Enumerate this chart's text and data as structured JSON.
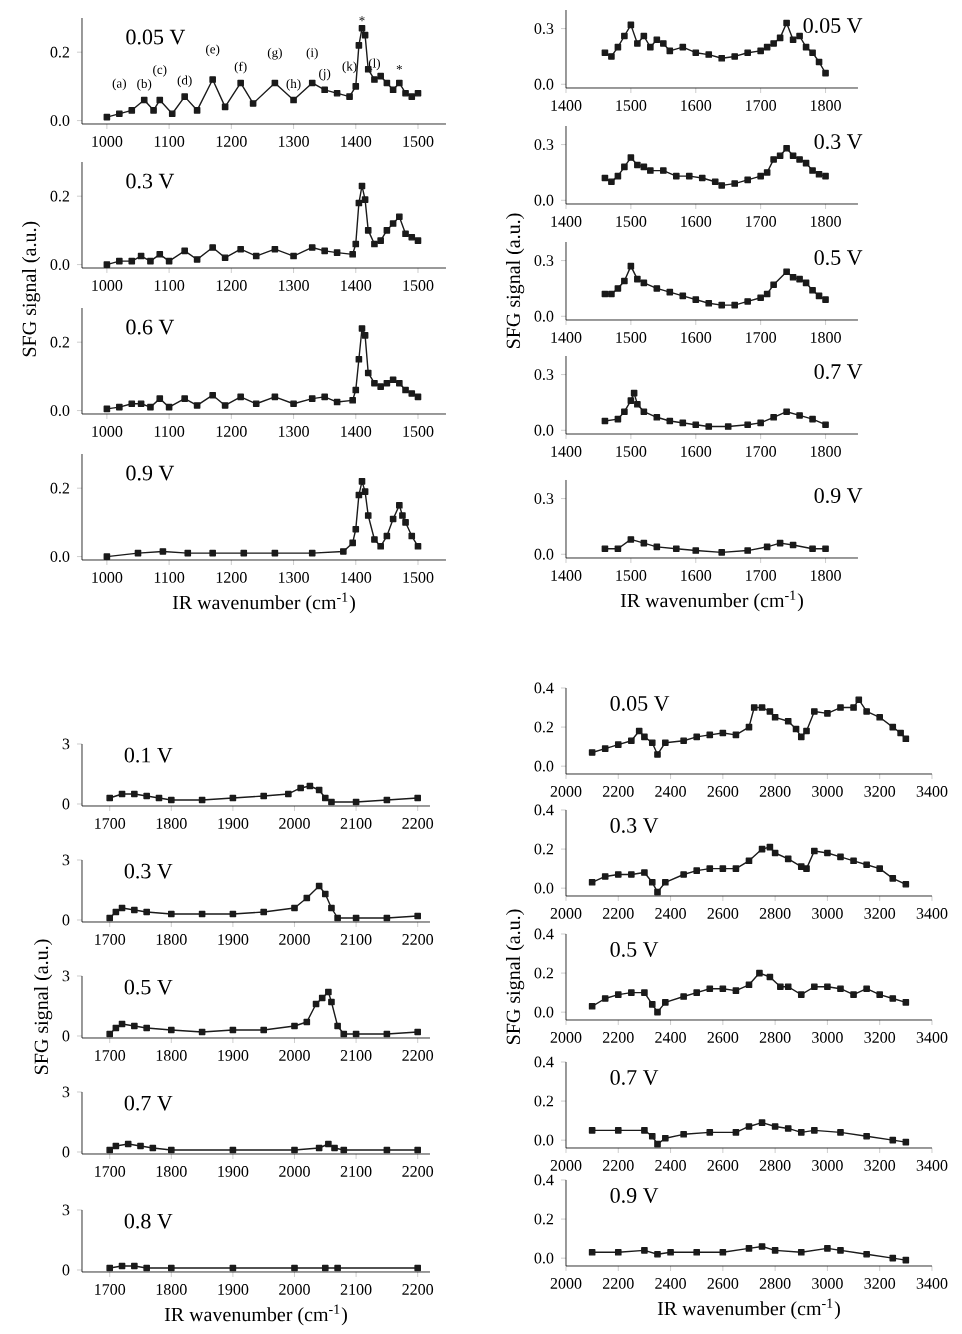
{
  "chart_data": [
    {
      "type": "line",
      "marker": "square",
      "color": "#1a1a1a",
      "xlim": [
        960,
        1545
      ],
      "ylim": [
        -0.01,
        0.3
      ],
      "xticks": [
        1000,
        1100,
        1200,
        1300,
        1400,
        1500
      ],
      "yticks": [
        {
          "value": 0,
          "label": "0.0"
        },
        {
          "value": 0.2,
          "label": "0.2"
        }
      ],
      "x": [
        1000,
        1020,
        1040,
        1060,
        1075,
        1085,
        1105,
        1125,
        1145,
        1170,
        1190,
        1215,
        1235,
        1270,
        1300,
        1330,
        1350,
        1370,
        1390,
        1400,
        1405,
        1410,
        1415,
        1420,
        1430,
        1440,
        1450,
        1460,
        1470,
        1480,
        1490,
        1500
      ],
      "values": [
        0.01,
        0.02,
        0.03,
        0.06,
        0.03,
        0.06,
        0.02,
        0.07,
        0.03,
        0.12,
        0.04,
        0.11,
        0.05,
        0.11,
        0.06,
        0.11,
        0.09,
        0.08,
        0.07,
        0.1,
        0.22,
        0.27,
        0.25,
        0.15,
        0.12,
        0.13,
        0.11,
        0.09,
        0.11,
        0.08,
        0.07,
        0.08
      ],
      "annotations": [
        "0.05 V",
        {
          "text": "(a)",
          "x": 1020,
          "y": 0.02
        },
        {
          "text": "(b)",
          "x": 1060,
          "y": 0.06
        },
        {
          "text": "(c)",
          "x": 1085,
          "y": 0.06
        },
        {
          "text": "(d)",
          "x": 1125,
          "y": 0.07
        },
        {
          "text": "(e)",
          "x": 1170,
          "y": 0.12
        },
        {
          "text": "(f)",
          "x": 1215,
          "y": 0.11
        },
        {
          "text": "(g)",
          "x": 1270,
          "y": 0.11
        },
        {
          "text": "(h)",
          "x": 1300,
          "y": 0.06
        },
        {
          "text": "(i)",
          "x": 1330,
          "y": 0.11
        },
        {
          "text": "(j)",
          "x": 1350,
          "y": 0.09
        },
        {
          "text": "(k)",
          "x": 1390,
          "y": 0.07
        },
        {
          "text": "(l)",
          "x": 1430,
          "y": 0.12
        },
        {
          "text": "*",
          "x": 1410,
          "y": 0.27
        },
        {
          "text": "*",
          "x": 1470,
          "y": 0.11
        }
      ]
    },
    {
      "type": "line",
      "marker": "square",
      "color": "#1a1a1a",
      "xlim": [
        960,
        1545
      ],
      "ylim": [
        -0.01,
        0.3
      ],
      "xticks": [
        1000,
        1100,
        1200,
        1300,
        1400,
        1500
      ],
      "yticks": [
        {
          "value": 0,
          "label": "0.0"
        },
        {
          "value": 0.2,
          "label": "0.2"
        }
      ],
      "ylabel": "SFG signal (a.u.)",
      "x": [
        1000,
        1020,
        1040,
        1055,
        1070,
        1085,
        1100,
        1125,
        1145,
        1170,
        1190,
        1215,
        1240,
        1270,
        1300,
        1330,
        1350,
        1370,
        1395,
        1400,
        1405,
        1410,
        1415,
        1420,
        1430,
        1440,
        1450,
        1460,
        1470,
        1480,
        1490,
        1500
      ],
      "values": [
        0.0,
        0.01,
        0.01,
        0.025,
        0.01,
        0.03,
        0.01,
        0.04,
        0.015,
        0.05,
        0.02,
        0.045,
        0.025,
        0.045,
        0.025,
        0.05,
        0.04,
        0.035,
        0.03,
        0.06,
        0.18,
        0.23,
        0.19,
        0.1,
        0.06,
        0.07,
        0.1,
        0.12,
        0.14,
        0.09,
        0.08,
        0.07
      ],
      "annotations": [
        "0.3 V"
      ]
    },
    {
      "type": "line",
      "marker": "square",
      "color": "#1a1a1a",
      "xlim": [
        960,
        1545
      ],
      "ylim": [
        -0.01,
        0.3
      ],
      "xticks": [
        1000,
        1100,
        1200,
        1300,
        1400,
        1500
      ],
      "yticks": [
        {
          "value": 0,
          "label": "0.0"
        },
        {
          "value": 0.2,
          "label": "0.2"
        }
      ],
      "x": [
        1000,
        1020,
        1040,
        1055,
        1070,
        1085,
        1100,
        1125,
        1145,
        1170,
        1190,
        1215,
        1240,
        1270,
        1300,
        1330,
        1350,
        1370,
        1395,
        1400,
        1405,
        1410,
        1415,
        1420,
        1430,
        1440,
        1450,
        1460,
        1470,
        1480,
        1490,
        1500
      ],
      "values": [
        0.005,
        0.01,
        0.02,
        0.02,
        0.01,
        0.035,
        0.01,
        0.035,
        0.015,
        0.045,
        0.015,
        0.04,
        0.02,
        0.04,
        0.02,
        0.035,
        0.04,
        0.025,
        0.03,
        0.06,
        0.15,
        0.24,
        0.22,
        0.11,
        0.08,
        0.07,
        0.08,
        0.09,
        0.08,
        0.06,
        0.05,
        0.04
      ],
      "annotations": [
        "0.6 V"
      ]
    },
    {
      "type": "line",
      "marker": "square",
      "color": "#1a1a1a",
      "xlim": [
        960,
        1545
      ],
      "ylim": [
        -0.01,
        0.3
      ],
      "xticks": [
        1000,
        1100,
        1200,
        1300,
        1400,
        1500
      ],
      "yticks": [
        {
          "value": 0,
          "label": "0.0"
        },
        {
          "value": 0.2,
          "label": "0.2"
        }
      ],
      "xlabel": "IR wavenumber (cm$^{-1}$)",
      "x": [
        1000,
        1050,
        1090,
        1130,
        1170,
        1220,
        1270,
        1330,
        1380,
        1395,
        1400,
        1405,
        1410,
        1415,
        1420,
        1430,
        1440,
        1450,
        1460,
        1470,
        1475,
        1480,
        1490,
        1500
      ],
      "values": [
        0.0,
        0.01,
        0.015,
        0.01,
        0.01,
        0.01,
        0.01,
        0.01,
        0.015,
        0.04,
        0.08,
        0.18,
        0.22,
        0.19,
        0.12,
        0.05,
        0.03,
        0.06,
        0.11,
        0.15,
        0.12,
        0.1,
        0.06,
        0.03
      ],
      "annotations": [
        "0.9 V"
      ]
    },
    {
      "type": "line",
      "marker": "square",
      "color": "#1a1a1a",
      "xlim": [
        1400,
        1850
      ],
      "ylim": [
        -0.02,
        0.4
      ],
      "xticks": [
        1400,
        1500,
        1600,
        1700,
        1800
      ],
      "yticks": [
        {
          "value": 0,
          "label": "0.0"
        },
        {
          "value": 0.3,
          "label": "0.3"
        }
      ],
      "x": [
        1460,
        1470,
        1480,
        1490,
        1500,
        1510,
        1520,
        1530,
        1540,
        1550,
        1560,
        1580,
        1600,
        1620,
        1640,
        1660,
        1680,
        1700,
        1710,
        1720,
        1730,
        1740,
        1750,
        1760,
        1770,
        1780,
        1790,
        1800
      ],
      "values": [
        0.17,
        0.15,
        0.2,
        0.26,
        0.32,
        0.22,
        0.26,
        0.2,
        0.24,
        0.22,
        0.18,
        0.2,
        0.17,
        0.16,
        0.14,
        0.15,
        0.17,
        0.18,
        0.2,
        0.22,
        0.25,
        0.33,
        0.24,
        0.26,
        0.2,
        0.17,
        0.12,
        0.06
      ],
      "annotations": [
        "0.05 V"
      ]
    },
    {
      "type": "line",
      "marker": "square",
      "color": "#1a1a1a",
      "xlim": [
        1400,
        1850
      ],
      "ylim": [
        -0.02,
        0.4
      ],
      "xticks": [
        1400,
        1500,
        1600,
        1700,
        1800
      ],
      "yticks": [
        {
          "value": 0,
          "label": "0.0"
        },
        {
          "value": 0.3,
          "label": "0.3"
        }
      ],
      "x": [
        1460,
        1470,
        1480,
        1490,
        1500,
        1510,
        1520,
        1530,
        1550,
        1570,
        1590,
        1610,
        1630,
        1640,
        1660,
        1680,
        1700,
        1710,
        1720,
        1730,
        1740,
        1750,
        1760,
        1770,
        1780,
        1790,
        1800
      ],
      "values": [
        0.12,
        0.1,
        0.13,
        0.18,
        0.23,
        0.19,
        0.18,
        0.16,
        0.16,
        0.13,
        0.13,
        0.12,
        0.1,
        0.08,
        0.09,
        0.11,
        0.13,
        0.15,
        0.22,
        0.24,
        0.28,
        0.24,
        0.22,
        0.2,
        0.16,
        0.14,
        0.13
      ],
      "annotations": [
        "0.3 V"
      ]
    },
    {
      "type": "line",
      "marker": "square",
      "color": "#1a1a1a",
      "xlim": [
        1400,
        1850
      ],
      "ylim": [
        -0.02,
        0.4
      ],
      "xticks": [
        1400,
        1500,
        1600,
        1700,
        1800
      ],
      "yticks": [
        {
          "value": 0,
          "label": "0.0"
        },
        {
          "value": 0.3,
          "label": "0.3"
        }
      ],
      "ylabel": "SFG signal (a.u.)",
      "x": [
        1460,
        1470,
        1480,
        1490,
        1500,
        1510,
        1520,
        1540,
        1560,
        1580,
        1600,
        1620,
        1640,
        1660,
        1680,
        1700,
        1710,
        1720,
        1740,
        1750,
        1760,
        1770,
        1780,
        1790,
        1800
      ],
      "values": [
        0.12,
        0.12,
        0.15,
        0.19,
        0.27,
        0.2,
        0.18,
        0.15,
        0.13,
        0.11,
        0.09,
        0.07,
        0.06,
        0.06,
        0.08,
        0.1,
        0.12,
        0.17,
        0.24,
        0.21,
        0.2,
        0.18,
        0.14,
        0.11,
        0.09
      ],
      "annotations": [
        "0.5 V"
      ]
    },
    {
      "type": "line",
      "marker": "square",
      "color": "#1a1a1a",
      "xlim": [
        1400,
        1850
      ],
      "ylim": [
        -0.02,
        0.4
      ],
      "xticks": [
        1400,
        1500,
        1600,
        1700,
        1800
      ],
      "yticks": [
        {
          "value": 0,
          "label": "0.0"
        },
        {
          "value": 0.3,
          "label": "0.3"
        }
      ],
      "x": [
        1460,
        1480,
        1490,
        1500,
        1505,
        1510,
        1520,
        1540,
        1560,
        1580,
        1600,
        1620,
        1650,
        1680,
        1700,
        1720,
        1740,
        1760,
        1780,
        1800
      ],
      "values": [
        0.05,
        0.06,
        0.1,
        0.16,
        0.2,
        0.14,
        0.1,
        0.07,
        0.05,
        0.04,
        0.03,
        0.02,
        0.02,
        0.03,
        0.04,
        0.07,
        0.1,
        0.08,
        0.06,
        0.03
      ],
      "annotations": [
        "0.7 V"
      ]
    },
    {
      "type": "line",
      "marker": "square",
      "color": "#1a1a1a",
      "xlim": [
        1400,
        1850
      ],
      "ylim": [
        -0.02,
        0.4
      ],
      "xticks": [
        1400,
        1500,
        1600,
        1700,
        1800
      ],
      "yticks": [
        {
          "value": 0,
          "label": "0.0"
        },
        {
          "value": 0.3,
          "label": "0.3"
        }
      ],
      "xlabel": "IR wavenumber (cm$^{-1}$)",
      "x": [
        1460,
        1480,
        1500,
        1520,
        1540,
        1570,
        1600,
        1640,
        1680,
        1710,
        1730,
        1750,
        1780,
        1800
      ],
      "values": [
        0.03,
        0.03,
        0.08,
        0.06,
        0.04,
        0.03,
        0.02,
        0.01,
        0.02,
        0.04,
        0.06,
        0.05,
        0.03,
        0.03
      ],
      "annotations": [
        "0.9 V"
      ]
    },
    {
      "type": "line",
      "marker": "square",
      "color": "#1a1a1a",
      "xlim": [
        1655,
        2220
      ],
      "ylim": [
        -0.1,
        3
      ],
      "xticks": [
        1700,
        1800,
        1900,
        2000,
        2100,
        2200
      ],
      "yticks": [
        0,
        3
      ],
      "x": [
        1700,
        1720,
        1740,
        1760,
        1780,
        1800,
        1850,
        1900,
        1950,
        1990,
        2010,
        2025,
        2040,
        2050,
        2060,
        2100,
        2150,
        2200
      ],
      "values": [
        0.3,
        0.5,
        0.5,
        0.4,
        0.3,
        0.2,
        0.2,
        0.3,
        0.4,
        0.5,
        0.8,
        0.9,
        0.7,
        0.3,
        0.1,
        0.1,
        0.2,
        0.3
      ],
      "annotations": [
        "0.1 V"
      ]
    },
    {
      "type": "line",
      "marker": "square",
      "color": "#1a1a1a",
      "xlim": [
        1655,
        2220
      ],
      "ylim": [
        -0.1,
        3
      ],
      "xticks": [
        1700,
        1800,
        1900,
        2000,
        2100,
        2200
      ],
      "yticks": [
        0,
        3
      ],
      "x": [
        1700,
        1710,
        1720,
        1740,
        1760,
        1800,
        1850,
        1900,
        1950,
        2000,
        2020,
        2040,
        2050,
        2060,
        2070,
        2100,
        2150,
        2200
      ],
      "values": [
        0.1,
        0.4,
        0.6,
        0.5,
        0.4,
        0.3,
        0.3,
        0.3,
        0.4,
        0.6,
        1.1,
        1.7,
        1.3,
        0.6,
        0.1,
        0.1,
        0.1,
        0.2
      ],
      "annotations": [
        "0.3 V"
      ]
    },
    {
      "type": "line",
      "marker": "square",
      "color": "#1a1a1a",
      "xlim": [
        1655,
        2220
      ],
      "ylim": [
        -0.1,
        3
      ],
      "xticks": [
        1700,
        1800,
        1900,
        2000,
        2100,
        2200
      ],
      "yticks": [
        0,
        3
      ],
      "ylabel": "SFG signal (a.u.)",
      "x": [
        1700,
        1710,
        1720,
        1740,
        1760,
        1800,
        1850,
        1900,
        1950,
        2000,
        2020,
        2035,
        2045,
        2055,
        2060,
        2070,
        2080,
        2100,
        2150,
        2200
      ],
      "values": [
        0.1,
        0.4,
        0.6,
        0.5,
        0.4,
        0.3,
        0.2,
        0.3,
        0.3,
        0.5,
        0.7,
        1.6,
        1.9,
        2.2,
        1.7,
        0.5,
        0.1,
        0.1,
        0.1,
        0.2
      ],
      "annotations": [
        "0.5 V"
      ]
    },
    {
      "type": "line",
      "marker": "square",
      "color": "#1a1a1a",
      "xlim": [
        1655,
        2220
      ],
      "ylim": [
        -0.1,
        3
      ],
      "xticks": [
        1700,
        1800,
        1900,
        2000,
        2100,
        2200
      ],
      "yticks": [
        0,
        3
      ],
      "x": [
        1700,
        1710,
        1730,
        1750,
        1770,
        1800,
        1900,
        2000,
        2040,
        2055,
        2065,
        2080,
        2150,
        2200
      ],
      "values": [
        0.1,
        0.3,
        0.4,
        0.3,
        0.2,
        0.1,
        0.1,
        0.1,
        0.2,
        0.4,
        0.2,
        0.1,
        0.1,
        0.1
      ],
      "annotations": [
        "0.7 V"
      ]
    },
    {
      "type": "line",
      "marker": "square",
      "color": "#1a1a1a",
      "xlim": [
        1655,
        2220
      ],
      "ylim": [
        -0.1,
        3
      ],
      "xticks": [
        1700,
        1800,
        1900,
        2000,
        2100,
        2200
      ],
      "yticks": [
        0,
        3
      ],
      "xlabel": "IR wavenumber (cm$^{-1}$)",
      "x": [
        1700,
        1720,
        1740,
        1760,
        1800,
        1900,
        2000,
        2050,
        2070,
        2200
      ],
      "values": [
        0.1,
        0.2,
        0.2,
        0.1,
        0.1,
        0.1,
        0.1,
        0.1,
        0.1,
        0.1
      ],
      "annotations": [
        "0.8 V"
      ]
    },
    {
      "type": "line",
      "marker": "square",
      "color": "#1a1a1a",
      "xlim": [
        2000,
        3400
      ],
      "ylim": [
        -0.04,
        0.4
      ],
      "xticks": [
        2000,
        2200,
        2400,
        2600,
        2800,
        3000,
        3200,
        3400
      ],
      "yticks": [
        {
          "value": 0,
          "label": "0.0"
        },
        {
          "value": 0.2,
          "label": "0.2"
        },
        {
          "value": 0.4,
          "label": "0.4"
        }
      ],
      "x": [
        2100,
        2150,
        2200,
        2250,
        2280,
        2300,
        2330,
        2350,
        2380,
        2450,
        2500,
        2550,
        2600,
        2650,
        2700,
        2720,
        2750,
        2780,
        2800,
        2850,
        2880,
        2900,
        2920,
        2950,
        3000,
        3050,
        3100,
        3120,
        3150,
        3200,
        3250,
        3280,
        3300
      ],
      "values": [
        0.07,
        0.09,
        0.11,
        0.13,
        0.18,
        0.15,
        0.12,
        0.06,
        0.12,
        0.13,
        0.15,
        0.16,
        0.17,
        0.16,
        0.2,
        0.3,
        0.3,
        0.28,
        0.25,
        0.23,
        0.19,
        0.15,
        0.18,
        0.28,
        0.27,
        0.3,
        0.3,
        0.34,
        0.28,
        0.25,
        0.2,
        0.17,
        0.14
      ],
      "annotations": [
        "0.05 V"
      ]
    },
    {
      "type": "line",
      "marker": "square",
      "color": "#1a1a1a",
      "xlim": [
        2000,
        3400
      ],
      "ylim": [
        -0.04,
        0.4
      ],
      "xticks": [
        2000,
        2200,
        2400,
        2600,
        2800,
        3000,
        3200,
        3400
      ],
      "yticks": [
        {
          "value": 0,
          "label": "0.0"
        },
        {
          "value": 0.2,
          "label": "0.2"
        },
        {
          "value": 0.4,
          "label": "0.4"
        }
      ],
      "x": [
        2100,
        2150,
        2200,
        2250,
        2300,
        2330,
        2350,
        2380,
        2450,
        2500,
        2550,
        2600,
        2650,
        2700,
        2750,
        2780,
        2800,
        2850,
        2900,
        2920,
        2950,
        3000,
        3050,
        3100,
        3150,
        3200,
        3250,
        3300
      ],
      "values": [
        0.03,
        0.06,
        0.07,
        0.07,
        0.08,
        0.03,
        -0.02,
        0.03,
        0.07,
        0.09,
        0.1,
        0.1,
        0.1,
        0.14,
        0.2,
        0.21,
        0.18,
        0.15,
        0.11,
        0.1,
        0.19,
        0.18,
        0.16,
        0.14,
        0.12,
        0.1,
        0.05,
        0.02
      ],
      "annotations": [
        "0.3 V"
      ]
    },
    {
      "type": "line",
      "marker": "square",
      "color": "#1a1a1a",
      "xlim": [
        2000,
        3400
      ],
      "ylim": [
        -0.04,
        0.4
      ],
      "xticks": [
        2000,
        2200,
        2400,
        2600,
        2800,
        3000,
        3200,
        3400
      ],
      "yticks": [
        {
          "value": 0,
          "label": "0.0"
        },
        {
          "value": 0.2,
          "label": "0.2"
        },
        {
          "value": 0.4,
          "label": "0.4"
        }
      ],
      "ylabel": "SFG signal (a.u.)",
      "x": [
        2100,
        2150,
        2200,
        2250,
        2300,
        2330,
        2350,
        2380,
        2450,
        2500,
        2550,
        2600,
        2650,
        2700,
        2740,
        2780,
        2820,
        2850,
        2900,
        2950,
        3000,
        3050,
        3100,
        3150,
        3200,
        3250,
        3300
      ],
      "values": [
        0.03,
        0.07,
        0.09,
        0.1,
        0.1,
        0.04,
        0.0,
        0.05,
        0.08,
        0.1,
        0.12,
        0.12,
        0.11,
        0.14,
        0.2,
        0.18,
        0.13,
        0.13,
        0.09,
        0.13,
        0.13,
        0.12,
        0.09,
        0.12,
        0.09,
        0.07,
        0.05
      ],
      "annotations": [
        "0.5 V"
      ]
    },
    {
      "type": "line",
      "marker": "square",
      "color": "#1a1a1a",
      "xlim": [
        2000,
        3400
      ],
      "ylim": [
        -0.04,
        0.4
      ],
      "xticks": [
        2000,
        2200,
        2400,
        2600,
        2800,
        3000,
        3200,
        3400
      ],
      "yticks": [
        {
          "value": 0,
          "label": "0.0"
        },
        {
          "value": 0.2,
          "label": "0.2"
        },
        {
          "value": 0.4,
          "label": "0.4"
        }
      ],
      "x": [
        2100,
        2200,
        2300,
        2330,
        2350,
        2380,
        2450,
        2550,
        2650,
        2700,
        2750,
        2800,
        2850,
        2900,
        2950,
        3050,
        3150,
        3250,
        3300
      ],
      "values": [
        0.05,
        0.05,
        0.05,
        0.02,
        -0.02,
        0.01,
        0.03,
        0.04,
        0.04,
        0.07,
        0.09,
        0.07,
        0.06,
        0.04,
        0.05,
        0.04,
        0.02,
        0.0,
        -0.01
      ],
      "annotations": [
        "0.7 V"
      ]
    },
    {
      "type": "line",
      "marker": "square",
      "color": "#1a1a1a",
      "xlim": [
        2000,
        3400
      ],
      "ylim": [
        -0.04,
        0.4
      ],
      "xticks": [
        2000,
        2200,
        2400,
        2600,
        2800,
        3000,
        3200,
        3400
      ],
      "yticks": [
        {
          "value": 0,
          "label": "0.0"
        },
        {
          "value": 0.2,
          "label": "0.2"
        },
        {
          "value": 0.4,
          "label": "0.4"
        }
      ],
      "xlabel": "IR wavenumber (cm$^{-1}$)",
      "x": [
        2100,
        2200,
        2300,
        2350,
        2400,
        2500,
        2600,
        2700,
        2750,
        2800,
        2900,
        3000,
        3050,
        3150,
        3250,
        3300
      ],
      "values": [
        0.03,
        0.03,
        0.04,
        0.02,
        0.03,
        0.03,
        0.03,
        0.05,
        0.06,
        0.04,
        0.03,
        0.05,
        0.04,
        0.02,
        0.0,
        -0.01
      ],
      "annotations": [
        "0.9 V"
      ]
    }
  ]
}
